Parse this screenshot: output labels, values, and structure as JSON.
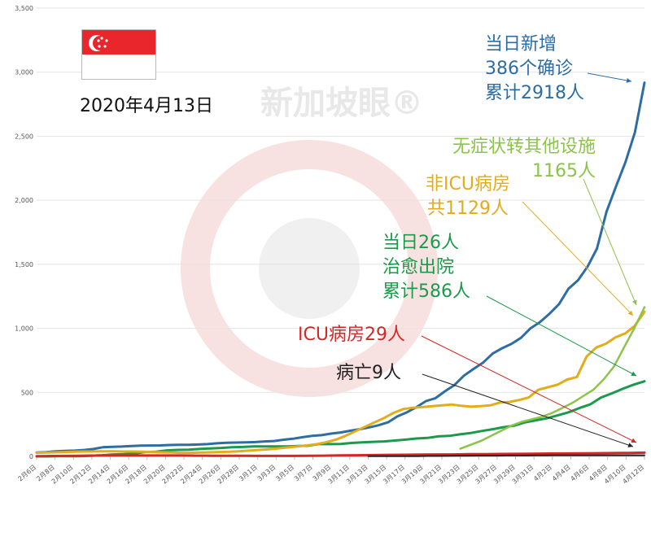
{
  "date_label": "2020年4月13日",
  "flag_icon": "singapore-flag-icon",
  "watermark_text": "新加坡眼®",
  "annotations": {
    "total_confirmed": {
      "lines": [
        "当日新增",
        "386个确诊",
        "累计2918人"
      ],
      "color": "#2e6da4"
    },
    "asymptomatic": {
      "lines": [
        "无症状转其他设施",
        "1165人"
      ],
      "color": "#8cc44a"
    },
    "non_icu": {
      "lines": [
        "非ICU病房",
        "共1129人"
      ],
      "color": "#e3ac1c"
    },
    "recovered": {
      "lines": [
        "当日26人",
        "治愈出院",
        "累计586人"
      ],
      "color": "#1a9a4a"
    },
    "icu": {
      "lines": [
        "ICU病房29人"
      ],
      "color": "#d62728"
    },
    "deaths": {
      "lines": [
        "病亡9人"
      ],
      "color": "#222222"
    }
  },
  "chart_data": {
    "type": "line",
    "ylim": [
      0,
      3500
    ],
    "yticks": [
      0,
      500,
      1000,
      1500,
      2000,
      2500,
      3000,
      3500
    ],
    "ytick_labels": [
      "0",
      "500",
      "1,000",
      "1,500",
      "2,000",
      "2,500",
      "3,000",
      "3,500"
    ],
    "grid": true,
    "x_tick_labels": [
      "2月6日",
      "2月8日",
      "2月10日",
      "2月12日",
      "2月14日",
      "2月16日",
      "2月18日",
      "2月20日",
      "2月22日",
      "2月24日",
      "2月26日",
      "2月28日",
      "3月1日",
      "3月3日",
      "3月5日",
      "3月7日",
      "3月9日",
      "3月11日",
      "3月13日",
      "3月15日",
      "3月17日",
      "3月19日",
      "3月21日",
      "3月23日",
      "3月25日",
      "3月27日",
      "3月29日",
      "3月31日",
      "4月2日",
      "4月4日",
      "4月6日",
      "4月8日",
      "4月10日",
      "4月12日"
    ],
    "series": [
      {
        "key": "total_confirmed",
        "color": "#2e6da4",
        "start_index": 0,
        "values": [
          30,
          33,
          40,
          43,
          45,
          50,
          58,
          72,
          75,
          77,
          81,
          84,
          85,
          86,
          89,
          90,
          91,
          93,
          96,
          102,
          106,
          108,
          110,
          112,
          117,
          120,
          130,
          138,
          150,
          160,
          166,
          178,
          187,
          200,
          212,
          226,
          243,
          266,
          313,
          345,
          385,
          432,
          455,
          509,
          558,
          631,
          683,
          732,
          802,
          844,
          879,
          926,
          1000,
          1049,
          1114,
          1189,
          1309,
          1375,
          1481,
          1623,
          1910,
          2108,
          2299,
          2532,
          2918
        ]
      },
      {
        "key": "recovered",
        "color": "#1a9a4a",
        "start_index": 0,
        "values": [
          0,
          0,
          1,
          2,
          2,
          5,
          9,
          15,
          17,
          22,
          34,
          37,
          47,
          51,
          53,
          58,
          62,
          66,
          72,
          74,
          78,
          78,
          78,
          78,
          81,
          83,
          96,
          96,
          97,
          105,
          109,
          114,
          117,
          124,
          131,
          140,
          144,
          156,
          160,
          172,
          183,
          198,
          212,
          228,
          240,
          266,
          282,
          297,
          320,
          344,
          377,
          406,
          460,
          492,
          528,
          560,
          586
        ]
      },
      {
        "key": "non_icu",
        "color": "#e3ac1c",
        "start_index": 0,
        "values": [
          28,
          30,
          32,
          34,
          36,
          38,
          39,
          40,
          40,
          38,
          38,
          36,
          34,
          32,
          30,
          28,
          28,
          30,
          32,
          34,
          36,
          40,
          45,
          50,
          56,
          62,
          70,
          78,
          86,
          95,
          110,
          130,
          160,
          195,
          230,
          265,
          300,
          340,
          370,
          380,
          385,
          392,
          398,
          405,
          395,
          388,
          392,
          398,
          420,
          425,
          440,
          460,
          520,
          540,
          560,
          600,
          620,
          780,
          850,
          880,
          930,
          960,
          1020,
          1129
        ]
      },
      {
        "key": "asymptomatic",
        "color": "#8cc44a",
        "start_index": 46,
        "values": [
          60,
          90,
          120,
          160,
          200,
          240,
          270,
          290,
          310,
          340,
          380,
          420,
          470,
          520,
          600,
          700,
          850,
          1000,
          1165
        ]
      },
      {
        "key": "icu",
        "color": "#d62728",
        "start_index": 0,
        "values": [
          2,
          3,
          4,
          6,
          7,
          7,
          7,
          7,
          7,
          7,
          6,
          5,
          5,
          5,
          4,
          4,
          4,
          5,
          6,
          8,
          9,
          10,
          12,
          13,
          14,
          15,
          15,
          17,
          18,
          19,
          20,
          21,
          22,
          23,
          24,
          25,
          26,
          27,
          29
        ]
      },
      {
        "key": "deaths",
        "color": "#222222",
        "start_index": 36,
        "values": [
          1,
          1,
          2,
          2,
          2,
          2,
          3,
          3,
          4,
          5,
          5,
          6,
          6,
          6,
          7,
          7,
          7,
          8,
          8,
          9,
          9,
          9,
          9,
          9,
          9,
          9,
          9,
          9,
          9
        ]
      }
    ]
  }
}
